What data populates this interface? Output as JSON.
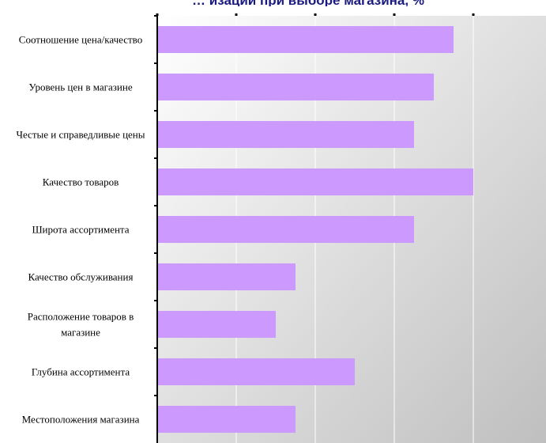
{
  "chart_data": {
    "type": "bar",
    "orientation": "horizontal",
    "title": "… изации при выборе магазина, %",
    "categories": [
      "Соотношение цена/качество",
      "Уровень цен в магазине",
      "Честые и справедливые цены",
      "Качество товаров",
      "Широта ассортимента",
      "Качество обслуживания",
      "Расположение товаров в магазине",
      "Глубина ассортимента",
      "Местоположения магазина"
    ],
    "values": [
      75,
      70,
      65,
      80,
      65,
      35,
      30,
      50,
      35
    ],
    "xlim": [
      0,
      80
    ],
    "grid": true,
    "legend": "none",
    "colors": {
      "bar": "#cc99ff",
      "plot_bg_start": "#ffffff",
      "plot_bg_end": "#bfbfbf",
      "title": "#1a1a80"
    }
  }
}
